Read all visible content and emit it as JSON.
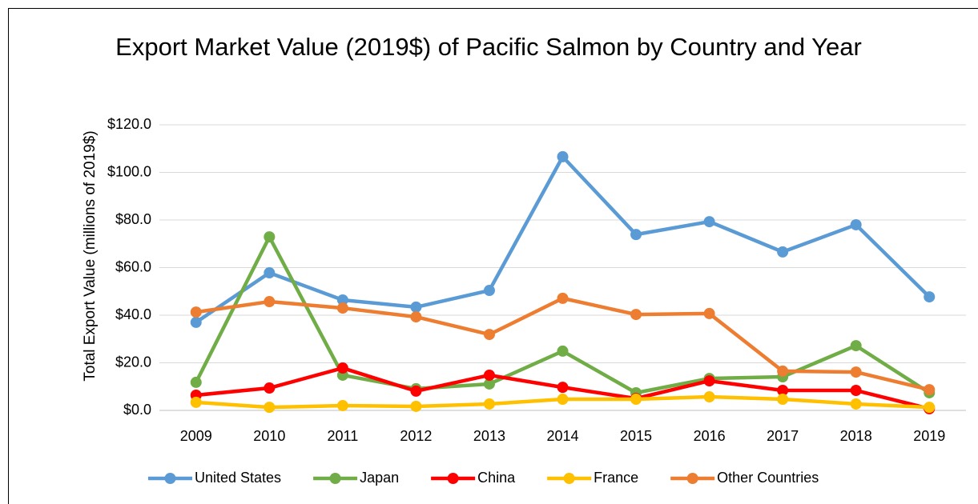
{
  "chart_data": {
    "type": "line",
    "title": "Export Market Value (2019$) of Pacific Salmon by Country and Year",
    "y_label": "Total Export Value (millions of 2019$)",
    "categories": [
      "2009",
      "2010",
      "2011",
      "2012",
      "2013",
      "2014",
      "2015",
      "2016",
      "2017",
      "2018",
      "2019"
    ],
    "series": [
      {
        "name": "United States",
        "color": "#5b9bd5",
        "values": [
          37.0,
          57.8,
          46.4,
          43.4,
          50.4,
          106.6,
          73.9,
          79.3,
          66.6,
          78.0,
          47.7
        ]
      },
      {
        "name": "Japan",
        "color": "#70ad47",
        "values": [
          11.8,
          72.9,
          14.8,
          9.1,
          11.1,
          24.9,
          7.4,
          13.4,
          14.1,
          27.2,
          7.4
        ]
      },
      {
        "name": "China",
        "color": "#ff0000",
        "values": [
          6.4,
          9.4,
          17.8,
          8.1,
          14.8,
          9.7,
          5.0,
          12.4,
          8.4,
          8.4,
          0.7
        ]
      },
      {
        "name": "France",
        "color": "#ffc000",
        "values": [
          3.4,
          1.3,
          2.0,
          1.7,
          2.7,
          4.7,
          4.7,
          5.7,
          4.7,
          2.7,
          1.3
        ]
      },
      {
        "name": "Other Countries",
        "color": "#ed7d31",
        "values": [
          41.3,
          45.7,
          43.0,
          39.3,
          31.9,
          47.1,
          40.3,
          40.7,
          16.5,
          16.1,
          8.7
        ]
      }
    ],
    "ylim": [
      0,
      120
    ],
    "yticks": [
      {
        "value": 0,
        "label": "$0.0"
      },
      {
        "value": 20,
        "label": "$20.0"
      },
      {
        "value": 40,
        "label": "$40.0"
      },
      {
        "value": 60,
        "label": "$60.0"
      },
      {
        "value": 80,
        "label": "$80.0"
      },
      {
        "value": 100,
        "label": "$100.0"
      },
      {
        "value": 120,
        "label": "$120.0"
      }
    ],
    "grid": true,
    "legend": "bottom"
  }
}
